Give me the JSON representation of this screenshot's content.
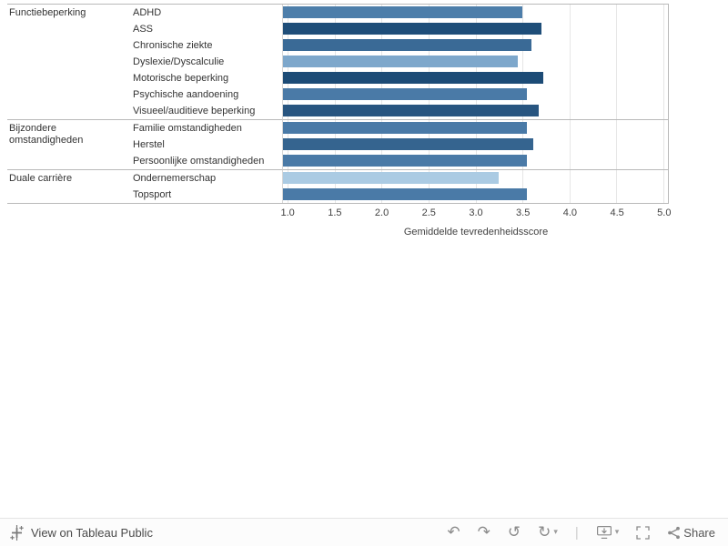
{
  "chart_data": {
    "type": "bar",
    "orientation": "horizontal",
    "title": "",
    "xlabel": "Gemiddelde tevredenheidsscore",
    "ylabel": "",
    "axis_min": 0.95,
    "axis_max": 5.05,
    "x_ticks": [
      "1.0",
      "1.5",
      "2.0",
      "2.5",
      "3.0",
      "3.5",
      "4.0",
      "4.5",
      "5.0"
    ],
    "groups": [
      {
        "label": "Functiebeperking",
        "rows": [
          {
            "label": "ADHD",
            "value": 3.5,
            "color": "#4d7eaa"
          },
          {
            "label": "ASS",
            "value": 3.7,
            "color": "#1f4e79"
          },
          {
            "label": "Chronische ziekte",
            "value": 3.6,
            "color": "#3a6a96"
          },
          {
            "label": "Dyslexie/Dyscalculie",
            "value": 3.45,
            "color": "#7da7cb"
          },
          {
            "label": "Motorische beperking",
            "value": 3.72,
            "color": "#1c4b76"
          },
          {
            "label": "Psychische aandoening",
            "value": 3.55,
            "color": "#4a7aa7"
          },
          {
            "label": "Visueel/auditieve beperking",
            "value": 3.67,
            "color": "#285580"
          }
        ]
      },
      {
        "label": "Bijzondere omstandigheden",
        "rows": [
          {
            "label": "Familie omstandigheden",
            "value": 3.55,
            "color": "#4a7aa7"
          },
          {
            "label": "Herstel",
            "value": 3.62,
            "color": "#35648f"
          },
          {
            "label": "Persoonlijke omstandigheden",
            "value": 3.55,
            "color": "#4a7aa7"
          }
        ]
      },
      {
        "label": "Duale carrière",
        "rows": [
          {
            "label": "Ondernemerschap",
            "value": 3.25,
            "color": "#abcbe3"
          },
          {
            "label": "Topsport",
            "value": 3.55,
            "color": "#4a7aa7"
          }
        ]
      }
    ]
  },
  "footer": {
    "view_label": "View on Tableau Public",
    "share_label": "Share",
    "toolbar": {
      "undo": "↶",
      "redo": "↷",
      "reset": "↺",
      "replay": "↻",
      "caret": "▾",
      "separator": "|"
    }
  }
}
